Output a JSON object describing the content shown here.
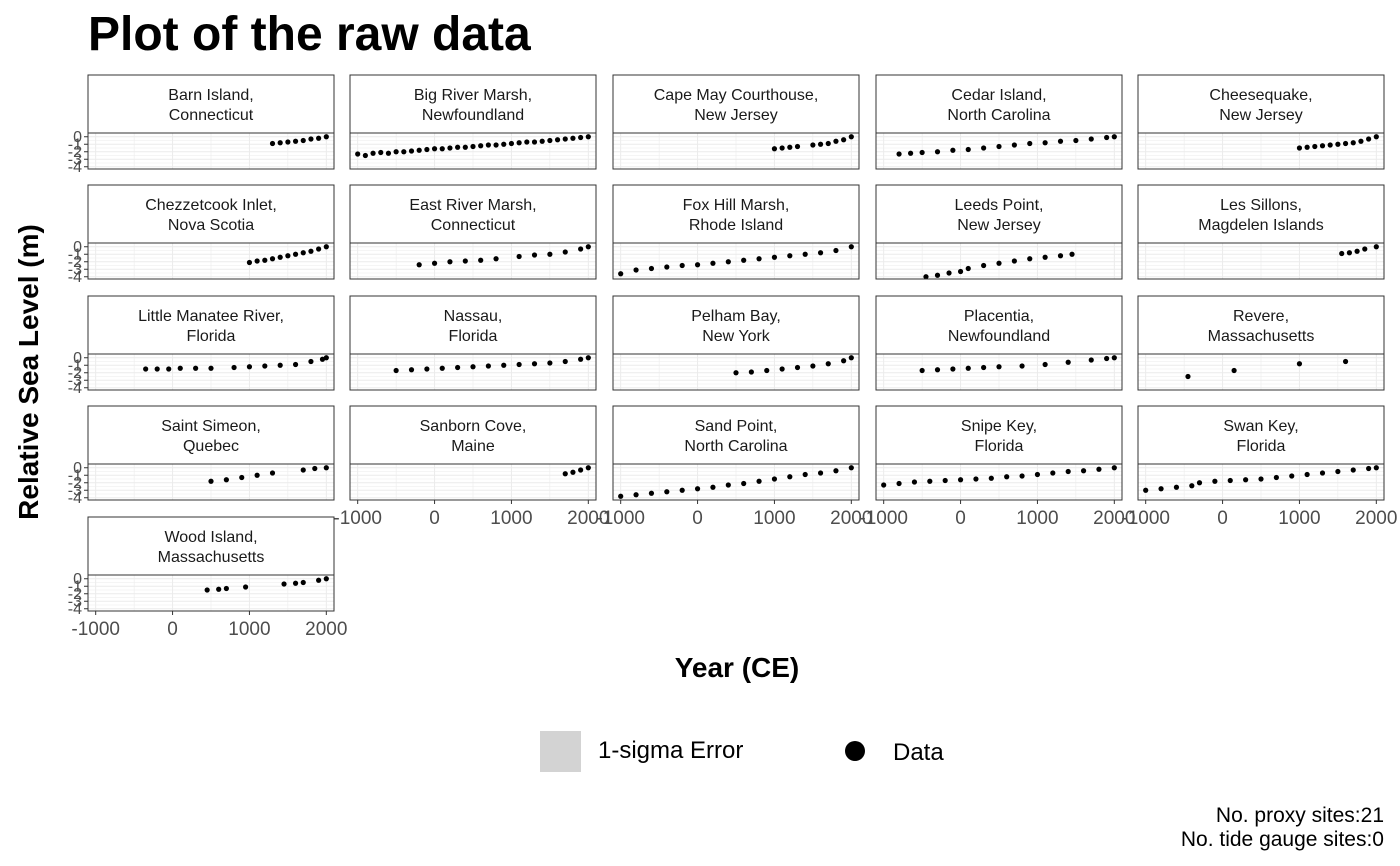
{
  "chart_data": {
    "type": "scatter",
    "title": "Plot of the raw data",
    "xlabel": "Year (CE)",
    "ylabel": "Relative Sea Level (m)",
    "xlim": [
      -1100,
      2100
    ],
    "ylim": [
      -4.3,
      0.5
    ],
    "x_ticks": [
      "-1000",
      "0",
      "1000",
      "2000"
    ],
    "x_tick_values": [
      -1000,
      0,
      1000,
      2000
    ],
    "y_ticks": [
      "-4",
      "-3",
      "-2",
      "-1",
      "0"
    ],
    "y_tick_values": [
      -4,
      -3,
      -2,
      -1,
      0
    ],
    "grid": true,
    "legend": {
      "position": "bottom",
      "entries": [
        {
          "label": "1-sigma Error",
          "symbol": "fill",
          "color": "#d3d3d3"
        },
        {
          "label": "Data",
          "symbol": "point",
          "color": "#000000"
        }
      ]
    },
    "caption": [
      "No. proxy sites:21",
      "No. tide gauge sites:0"
    ],
    "panels": [
      {
        "title": [
          "Barn Island,",
          "Connecticut"
        ],
        "data": [
          [
            1300,
            -0.9
          ],
          [
            1400,
            -0.8
          ],
          [
            1500,
            -0.7
          ],
          [
            1600,
            -0.6
          ],
          [
            1700,
            -0.5
          ],
          [
            1800,
            -0.3
          ],
          [
            1900,
            -0.2
          ],
          [
            2000,
            0
          ]
        ]
      },
      {
        "title": [
          "Big River Marsh,",
          "Newfoundland"
        ],
        "data": [
          [
            -1000,
            -2.3
          ],
          [
            -900,
            -2.5
          ],
          [
            -800,
            -2.2
          ],
          [
            -700,
            -2.1
          ],
          [
            -600,
            -2.2
          ],
          [
            -500,
            -2
          ],
          [
            -400,
            -2
          ],
          [
            -300,
            -1.9
          ],
          [
            -200,
            -1.8
          ],
          [
            -100,
            -1.7
          ],
          [
            0,
            -1.6
          ],
          [
            100,
            -1.6
          ],
          [
            200,
            -1.5
          ],
          [
            300,
            -1.4
          ],
          [
            400,
            -1.4
          ],
          [
            500,
            -1.3
          ],
          [
            600,
            -1.2
          ],
          [
            700,
            -1.1
          ],
          [
            800,
            -1.1
          ],
          [
            900,
            -1
          ],
          [
            1000,
            -0.9
          ],
          [
            1100,
            -0.8
          ],
          [
            1200,
            -0.7
          ],
          [
            1300,
            -0.7
          ],
          [
            1400,
            -0.6
          ],
          [
            1500,
            -0.5
          ],
          [
            1600,
            -0.4
          ],
          [
            1700,
            -0.3
          ],
          [
            1800,
            -0.2
          ],
          [
            1900,
            -0.1
          ],
          [
            2000,
            0
          ]
        ]
      },
      {
        "title": [
          "Cape May Courthouse,",
          "New Jersey"
        ],
        "data": [
          [
            1000,
            -1.6
          ],
          [
            1100,
            -1.5
          ],
          [
            1200,
            -1.4
          ],
          [
            1300,
            -1.3
          ],
          [
            1500,
            -1.1
          ],
          [
            1600,
            -1
          ],
          [
            1700,
            -0.9
          ],
          [
            1800,
            -0.6
          ],
          [
            1900,
            -0.4
          ],
          [
            2000,
            0
          ]
        ]
      },
      {
        "title": [
          "Cedar Island,",
          "North Carolina"
        ],
        "data": [
          [
            -800,
            -2.3
          ],
          [
            -650,
            -2.2
          ],
          [
            -500,
            -2.1
          ],
          [
            -300,
            -2
          ],
          [
            -100,
            -1.8
          ],
          [
            100,
            -1.7
          ],
          [
            300,
            -1.5
          ],
          [
            500,
            -1.3
          ],
          [
            700,
            -1.1
          ],
          [
            900,
            -0.9
          ],
          [
            1100,
            -0.8
          ],
          [
            1300,
            -0.6
          ],
          [
            1500,
            -0.5
          ],
          [
            1700,
            -0.3
          ],
          [
            1900,
            -0.1
          ],
          [
            2000,
            0
          ]
        ]
      },
      {
        "title": [
          "Cheesequake,",
          "New Jersey"
        ],
        "data": [
          [
            1000,
            -1.5
          ],
          [
            1100,
            -1.4
          ],
          [
            1200,
            -1.3
          ],
          [
            1300,
            -1.2
          ],
          [
            1400,
            -1.1
          ],
          [
            1500,
            -1
          ],
          [
            1600,
            -0.9
          ],
          [
            1700,
            -0.8
          ],
          [
            1800,
            -0.6
          ],
          [
            1900,
            -0.3
          ],
          [
            2000,
            0
          ]
        ]
      },
      {
        "title": [
          "Chezzetcook Inlet,",
          "Nova Scotia"
        ],
        "data": [
          [
            1000,
            -2.1
          ],
          [
            1100,
            -1.9
          ],
          [
            1200,
            -1.8
          ],
          [
            1300,
            -1.6
          ],
          [
            1400,
            -1.4
          ],
          [
            1500,
            -1.2
          ],
          [
            1600,
            -1
          ],
          [
            1700,
            -0.8
          ],
          [
            1800,
            -0.6
          ],
          [
            1900,
            -0.3
          ],
          [
            2000,
            0
          ]
        ]
      },
      {
        "title": [
          "East River Marsh,",
          "Connecticut"
        ],
        "data": [
          [
            -200,
            -2.4
          ],
          [
            0,
            -2.2
          ],
          [
            200,
            -2
          ],
          [
            400,
            -1.9
          ],
          [
            600,
            -1.8
          ],
          [
            800,
            -1.6
          ],
          [
            1100,
            -1.3
          ],
          [
            1300,
            -1.1
          ],
          [
            1500,
            -1
          ],
          [
            1700,
            -0.7
          ],
          [
            1900,
            -0.3
          ],
          [
            2000,
            0
          ]
        ]
      },
      {
        "title": [
          "Fox Hill Marsh,",
          "Rhode Island"
        ],
        "data": [
          [
            -1000,
            -3.6
          ],
          [
            -800,
            -3.1
          ],
          [
            -600,
            -2.9
          ],
          [
            -400,
            -2.7
          ],
          [
            -200,
            -2.5
          ],
          [
            0,
            -2.4
          ],
          [
            200,
            -2.2
          ],
          [
            400,
            -2
          ],
          [
            600,
            -1.8
          ],
          [
            800,
            -1.6
          ],
          [
            1000,
            -1.4
          ],
          [
            1200,
            -1.2
          ],
          [
            1400,
            -1
          ],
          [
            1600,
            -0.8
          ],
          [
            1800,
            -0.5
          ],
          [
            2000,
            0
          ]
        ]
      },
      {
        "title": [
          "Leeds Point,",
          "New Jersey"
        ],
        "data": [
          [
            -450,
            -4
          ],
          [
            -300,
            -3.8
          ],
          [
            -150,
            -3.5
          ],
          [
            0,
            -3.3
          ],
          [
            100,
            -2.9
          ],
          [
            300,
            -2.5
          ],
          [
            500,
            -2.2
          ],
          [
            700,
            -1.9
          ],
          [
            900,
            -1.6
          ],
          [
            1100,
            -1.4
          ],
          [
            1300,
            -1.2
          ],
          [
            1450,
            -1
          ]
        ]
      },
      {
        "title": [
          "Les Sillons,",
          "Magdelen Islands"
        ],
        "data": [
          [
            1550,
            -0.9
          ],
          [
            1650,
            -0.8
          ],
          [
            1750,
            -0.6
          ],
          [
            1850,
            -0.3
          ],
          [
            2000,
            0
          ]
        ]
      },
      {
        "title": [
          "Little Manatee River,",
          "Florida"
        ],
        "data": [
          [
            -350,
            -1.5
          ],
          [
            -200,
            -1.5
          ],
          [
            -50,
            -1.5
          ],
          [
            100,
            -1.4
          ],
          [
            300,
            -1.4
          ],
          [
            500,
            -1.4
          ],
          [
            800,
            -1.3
          ],
          [
            1000,
            -1.2
          ],
          [
            1200,
            -1.1
          ],
          [
            1400,
            -1
          ],
          [
            1600,
            -0.9
          ],
          [
            1800,
            -0.5
          ],
          [
            1950,
            -0.2
          ],
          [
            2000,
            0
          ]
        ]
      },
      {
        "title": [
          "Nassau,",
          "Florida"
        ],
        "data": [
          [
            -500,
            -1.7
          ],
          [
            -300,
            -1.6
          ],
          [
            -100,
            -1.5
          ],
          [
            100,
            -1.4
          ],
          [
            300,
            -1.3
          ],
          [
            500,
            -1.2
          ],
          [
            700,
            -1.1
          ],
          [
            900,
            -1
          ],
          [
            1100,
            -0.9
          ],
          [
            1300,
            -0.8
          ],
          [
            1500,
            -0.7
          ],
          [
            1700,
            -0.5
          ],
          [
            1900,
            -0.2
          ],
          [
            2000,
            0
          ]
        ]
      },
      {
        "title": [
          "Pelham Bay,",
          "New York"
        ],
        "data": [
          [
            500,
            -2
          ],
          [
            700,
            -1.9
          ],
          [
            900,
            -1.7
          ],
          [
            1100,
            -1.5
          ],
          [
            1300,
            -1.3
          ],
          [
            1500,
            -1.1
          ],
          [
            1700,
            -0.8
          ],
          [
            1900,
            -0.4
          ],
          [
            2000,
            0
          ]
        ]
      },
      {
        "title": [
          "Placentia,",
          "Newfoundland"
        ],
        "data": [
          [
            -500,
            -1.7
          ],
          [
            -300,
            -1.6
          ],
          [
            -100,
            -1.5
          ],
          [
            100,
            -1.4
          ],
          [
            300,
            -1.3
          ],
          [
            500,
            -1.2
          ],
          [
            800,
            -1.1
          ],
          [
            1100,
            -0.9
          ],
          [
            1400,
            -0.6
          ],
          [
            1700,
            -0.3
          ],
          [
            1900,
            -0.1
          ],
          [
            2000,
            0
          ]
        ]
      },
      {
        "title": [
          "Revere,",
          "Massachusetts"
        ],
        "data": [
          [
            -450,
            -2.5
          ],
          [
            150,
            -1.7
          ],
          [
            1000,
            -0.8
          ],
          [
            1600,
            -0.5
          ]
        ]
      },
      {
        "title": [
          "Saint Simeon,",
          "Quebec"
        ],
        "data": [
          [
            500,
            -1.8
          ],
          [
            700,
            -1.6
          ],
          [
            900,
            -1.3
          ],
          [
            1100,
            -1
          ],
          [
            1300,
            -0.7
          ],
          [
            1700,
            -0.3
          ],
          [
            1850,
            -0.1
          ],
          [
            2000,
            0
          ]
        ]
      },
      {
        "title": [
          "Sanborn Cove,",
          "Maine"
        ],
        "data": [
          [
            1700,
            -0.8
          ],
          [
            1800,
            -0.6
          ],
          [
            1900,
            -0.3
          ],
          [
            2000,
            0
          ]
        ]
      },
      {
        "title": [
          "Sand Point,",
          "North Carolina"
        ],
        "data": [
          [
            -1000,
            -3.8
          ],
          [
            -800,
            -3.6
          ],
          [
            -600,
            -3.4
          ],
          [
            -400,
            -3.2
          ],
          [
            -200,
            -3
          ],
          [
            0,
            -2.8
          ],
          [
            200,
            -2.6
          ],
          [
            400,
            -2.3
          ],
          [
            600,
            -2.1
          ],
          [
            800,
            -1.8
          ],
          [
            1000,
            -1.5
          ],
          [
            1200,
            -1.2
          ],
          [
            1400,
            -0.9
          ],
          [
            1600,
            -0.7
          ],
          [
            1800,
            -0.4
          ],
          [
            2000,
            0
          ]
        ]
      },
      {
        "title": [
          "Snipe Key,",
          "Florida"
        ],
        "data": [
          [
            -1000,
            -2.3
          ],
          [
            -800,
            -2.1
          ],
          [
            -600,
            -1.9
          ],
          [
            -400,
            -1.8
          ],
          [
            -200,
            -1.7
          ],
          [
            0,
            -1.6
          ],
          [
            200,
            -1.5
          ],
          [
            400,
            -1.4
          ],
          [
            600,
            -1.2
          ],
          [
            800,
            -1.1
          ],
          [
            1000,
            -0.9
          ],
          [
            1200,
            -0.7
          ],
          [
            1400,
            -0.5
          ],
          [
            1600,
            -0.4
          ],
          [
            1800,
            -0.2
          ],
          [
            2000,
            0
          ]
        ]
      },
      {
        "title": [
          "Swan Key,",
          "Florida"
        ],
        "data": [
          [
            -1000,
            -3
          ],
          [
            -800,
            -2.8
          ],
          [
            -600,
            -2.6
          ],
          [
            -400,
            -2.4
          ],
          [
            -300,
            -2
          ],
          [
            -100,
            -1.8
          ],
          [
            100,
            -1.7
          ],
          [
            300,
            -1.6
          ],
          [
            500,
            -1.5
          ],
          [
            700,
            -1.3
          ],
          [
            900,
            -1.1
          ],
          [
            1100,
            -0.9
          ],
          [
            1300,
            -0.7
          ],
          [
            1500,
            -0.5
          ],
          [
            1700,
            -0.3
          ],
          [
            1900,
            -0.1
          ],
          [
            2000,
            0
          ]
        ]
      },
      {
        "title": [
          "Wood Island,",
          "Massachusetts"
        ],
        "data": [
          [
            450,
            -1.5
          ],
          [
            600,
            -1.4
          ],
          [
            700,
            -1.3
          ],
          [
            950,
            -1.1
          ],
          [
            1450,
            -0.7
          ],
          [
            1600,
            -0.6
          ],
          [
            1700,
            -0.5
          ],
          [
            1900,
            -0.2
          ],
          [
            2000,
            0
          ]
        ]
      }
    ]
  }
}
